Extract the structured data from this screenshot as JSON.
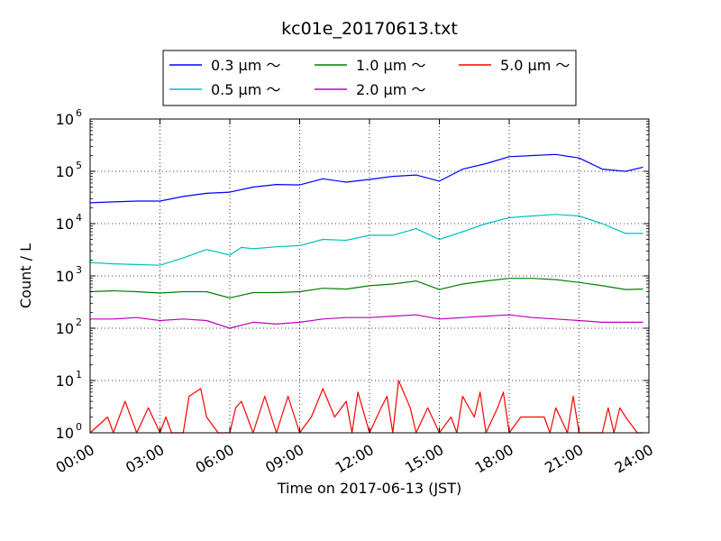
{
  "chart_data": {
    "type": "line",
    "title": "kc01e_20170613.txt",
    "xlabel": "Time on 2017-06-13 (JST)",
    "ylabel": "Count / L",
    "yscale": "log",
    "ylim": [
      1,
      1000000
    ],
    "yticks": [
      {
        "value": 1,
        "base": "10",
        "exp": "0"
      },
      {
        "value": 10,
        "base": "10",
        "exp": "1"
      },
      {
        "value": 100,
        "base": "10",
        "exp": "2"
      },
      {
        "value": 1000,
        "base": "10",
        "exp": "3"
      },
      {
        "value": 10000,
        "base": "10",
        "exp": "4"
      },
      {
        "value": 100000,
        "base": "10",
        "exp": "5"
      },
      {
        "value": 1000000,
        "base": "10",
        "exp": "6"
      }
    ],
    "xticks": [
      "00:00",
      "03:00",
      "06:00",
      "09:00",
      "12:00",
      "15:00",
      "18:00",
      "21:00",
      "24:00"
    ],
    "grid": true,
    "legend_position": "top-center",
    "series": [
      {
        "name": "0.3 μm ～",
        "color": "#0000ff",
        "points": [
          [
            "00:00",
            25000
          ],
          [
            "01:00",
            26000
          ],
          [
            "02:00",
            27000
          ],
          [
            "03:00",
            27000
          ],
          [
            "04:00",
            33000
          ],
          [
            "05:00",
            38000
          ],
          [
            "06:00",
            40000
          ],
          [
            "07:00",
            50000
          ],
          [
            "08:00",
            56000
          ],
          [
            "09:00",
            55000
          ],
          [
            "10:00",
            72000
          ],
          [
            "11:00",
            62000
          ],
          [
            "12:00",
            70000
          ],
          [
            "13:00",
            80000
          ],
          [
            "14:00",
            85000
          ],
          [
            "15:00",
            65000
          ],
          [
            "16:00",
            110000
          ],
          [
            "17:00",
            140000
          ],
          [
            "18:00",
            190000
          ],
          [
            "19:00",
            200000
          ],
          [
            "20:00",
            210000
          ],
          [
            "21:00",
            180000
          ],
          [
            "22:00",
            110000
          ],
          [
            "23:00",
            100000
          ],
          [
            "23:45",
            120000
          ]
        ]
      },
      {
        "name": "0.5 μm ～",
        "color": "#00bfbf",
        "points": [
          [
            "00:00",
            1800
          ],
          [
            "01:00",
            1700
          ],
          [
            "02:00",
            1650
          ],
          [
            "03:00",
            1600
          ],
          [
            "04:00",
            2200
          ],
          [
            "05:00",
            3200
          ],
          [
            "06:00",
            2500
          ],
          [
            "06:30",
            3500
          ],
          [
            "07:00",
            3300
          ],
          [
            "08:00",
            3600
          ],
          [
            "09:00",
            3800
          ],
          [
            "10:00",
            5000
          ],
          [
            "11:00",
            4800
          ],
          [
            "12:00",
            6000
          ],
          [
            "13:00",
            6000
          ],
          [
            "14:00",
            8000
          ],
          [
            "15:00",
            5000
          ],
          [
            "16:00",
            7000
          ],
          [
            "17:00",
            10000
          ],
          [
            "18:00",
            13000
          ],
          [
            "19:00",
            14000
          ],
          [
            "20:00",
            15000
          ],
          [
            "21:00",
            14000
          ],
          [
            "22:00",
            10000
          ],
          [
            "23:00",
            6500
          ],
          [
            "23:45",
            6500
          ]
        ]
      },
      {
        "name": "1.0 μm ～",
        "color": "#008000",
        "points": [
          [
            "00:00",
            500
          ],
          [
            "01:00",
            520
          ],
          [
            "02:00",
            500
          ],
          [
            "03:00",
            470
          ],
          [
            "04:00",
            500
          ],
          [
            "05:00",
            500
          ],
          [
            "06:00",
            380
          ],
          [
            "07:00",
            480
          ],
          [
            "08:00",
            480
          ],
          [
            "09:00",
            500
          ],
          [
            "10:00",
            580
          ],
          [
            "11:00",
            560
          ],
          [
            "12:00",
            650
          ],
          [
            "13:00",
            700
          ],
          [
            "14:00",
            800
          ],
          [
            "15:00",
            550
          ],
          [
            "16:00",
            700
          ],
          [
            "17:00",
            800
          ],
          [
            "18:00",
            900
          ],
          [
            "19:00",
            900
          ],
          [
            "20:00",
            850
          ],
          [
            "21:00",
            750
          ],
          [
            "22:00",
            650
          ],
          [
            "23:00",
            550
          ],
          [
            "23:45",
            560
          ]
        ]
      },
      {
        "name": "2.0 μm ～",
        "color": "#bf00bf",
        "points": [
          [
            "00:00",
            150
          ],
          [
            "01:00",
            150
          ],
          [
            "02:00",
            160
          ],
          [
            "03:00",
            140
          ],
          [
            "04:00",
            150
          ],
          [
            "05:00",
            140
          ],
          [
            "06:00",
            100
          ],
          [
            "07:00",
            130
          ],
          [
            "08:00",
            120
          ],
          [
            "09:00",
            130
          ],
          [
            "10:00",
            150
          ],
          [
            "11:00",
            160
          ],
          [
            "12:00",
            160
          ],
          [
            "13:00",
            170
          ],
          [
            "14:00",
            180
          ],
          [
            "15:00",
            150
          ],
          [
            "16:00",
            160
          ],
          [
            "17:00",
            170
          ],
          [
            "18:00",
            180
          ],
          [
            "19:00",
            160
          ],
          [
            "20:00",
            150
          ],
          [
            "21:00",
            140
          ],
          [
            "22:00",
            130
          ],
          [
            "23:00",
            130
          ],
          [
            "23:45",
            130
          ]
        ]
      },
      {
        "name": "5.0 μm ～",
        "color": "#ff0000",
        "points": [
          [
            "00:00",
            1
          ],
          [
            "00:45",
            2
          ],
          [
            "01:00",
            1
          ],
          [
            "01:30",
            4
          ],
          [
            "02:00",
            1
          ],
          [
            "02:30",
            3
          ],
          [
            "03:00",
            1
          ],
          [
            "03:15",
            2
          ],
          [
            "03:30",
            1
          ],
          [
            "04:00",
            1
          ],
          [
            "04:15",
            5
          ],
          [
            "04:45",
            7
          ],
          [
            "05:00",
            2
          ],
          [
            "05:30",
            1
          ],
          [
            "06:00",
            1
          ],
          [
            "06:15",
            3
          ],
          [
            "06:30",
            4
          ],
          [
            "07:00",
            1
          ],
          [
            "07:30",
            5
          ],
          [
            "08:00",
            1
          ],
          [
            "08:30",
            5
          ],
          [
            "09:00",
            1
          ],
          [
            "09:30",
            2
          ],
          [
            "10:00",
            7
          ],
          [
            "10:30",
            2
          ],
          [
            "11:00",
            4
          ],
          [
            "11:15",
            1
          ],
          [
            "11:30",
            6
          ],
          [
            "12:00",
            1
          ],
          [
            "12:30",
            3
          ],
          [
            "12:45",
            5
          ],
          [
            "13:00",
            1
          ],
          [
            "13:15",
            10
          ],
          [
            "13:45",
            3
          ],
          [
            "14:00",
            1
          ],
          [
            "14:30",
            3
          ],
          [
            "15:00",
            1
          ],
          [
            "15:30",
            2
          ],
          [
            "15:45",
            1
          ],
          [
            "16:00",
            5
          ],
          [
            "16:30",
            2
          ],
          [
            "16:45",
            6
          ],
          [
            "17:00",
            1
          ],
          [
            "17:30",
            3
          ],
          [
            "17:45",
            6
          ],
          [
            "18:00",
            1
          ],
          [
            "18:30",
            2
          ],
          [
            "19:00",
            2
          ],
          [
            "19:30",
            2
          ],
          [
            "19:45",
            1
          ],
          [
            "20:00",
            3
          ],
          [
            "20:30",
            1
          ],
          [
            "20:45",
            5
          ],
          [
            "21:00",
            1
          ],
          [
            "22:00",
            1
          ],
          [
            "22:15",
            3
          ],
          [
            "22:30",
            1
          ],
          [
            "22:45",
            3
          ],
          [
            "23:00",
            2
          ],
          [
            "23:30",
            1
          ],
          [
            "23:45",
            1
          ]
        ]
      }
    ]
  }
}
